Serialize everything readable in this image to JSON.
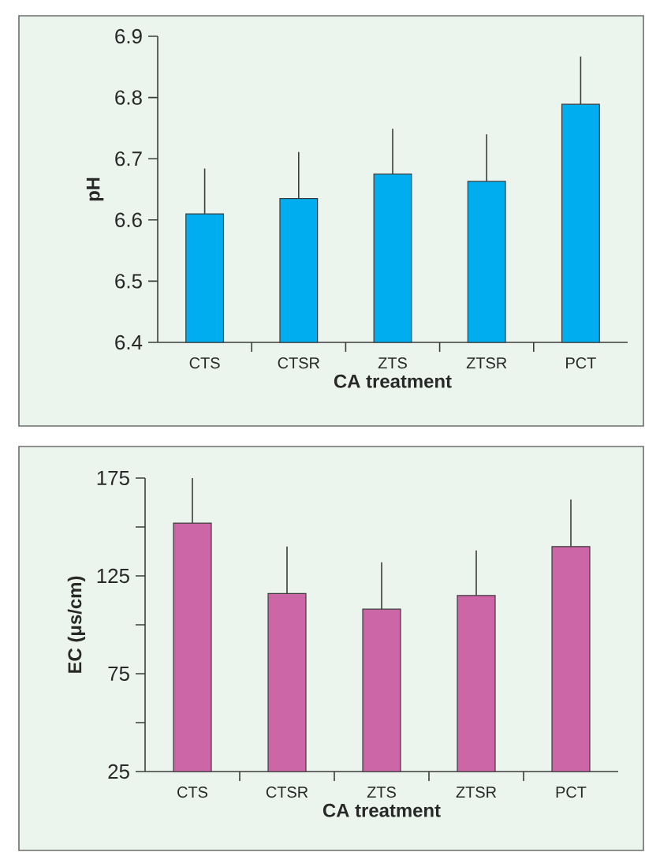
{
  "chart_data": [
    {
      "type": "bar",
      "xlabel": "CA treatment",
      "ylabel": "pH",
      "categories": [
        "CTS",
        "CTSR",
        "ZTS",
        "ZTSR",
        "PCT"
      ],
      "values": [
        6.61,
        6.635,
        6.675,
        6.663,
        6.789
      ],
      "color": "#00aeef",
      "errors": [
        [
          6.61,
          6.684
        ],
        [
          6.635,
          6.711
        ],
        [
          6.675,
          6.749
        ],
        [
          6.663,
          6.74
        ],
        [
          6.789,
          6.867
        ]
      ],
      "ylim": [
        6.4,
        6.9
      ],
      "yticks": [
        6.4,
        6.5,
        6.6,
        6.7,
        6.8,
        6.9
      ]
    },
    {
      "type": "bar",
      "xlabel": "CA treatment",
      "ylabel": "EC (μs/cm)",
      "categories": [
        "CTS",
        "CTSR",
        "ZTS",
        "ZTSR",
        "PCT"
      ],
      "values": [
        152,
        116,
        108,
        115,
        140
      ],
      "color": "#cc66a6",
      "errors": [
        [
          152,
          175
        ],
        [
          116,
          140
        ],
        [
          108,
          132
        ],
        [
          115,
          138
        ],
        [
          140,
          164
        ]
      ],
      "ylim": [
        25,
        175
      ],
      "yticks": [
        25,
        {
          "value": 50,
          "label": null
        },
        75,
        {
          "value": 100,
          "label": null
        },
        125,
        {
          "value": 150,
          "label": null
        },
        175
      ]
    }
  ]
}
